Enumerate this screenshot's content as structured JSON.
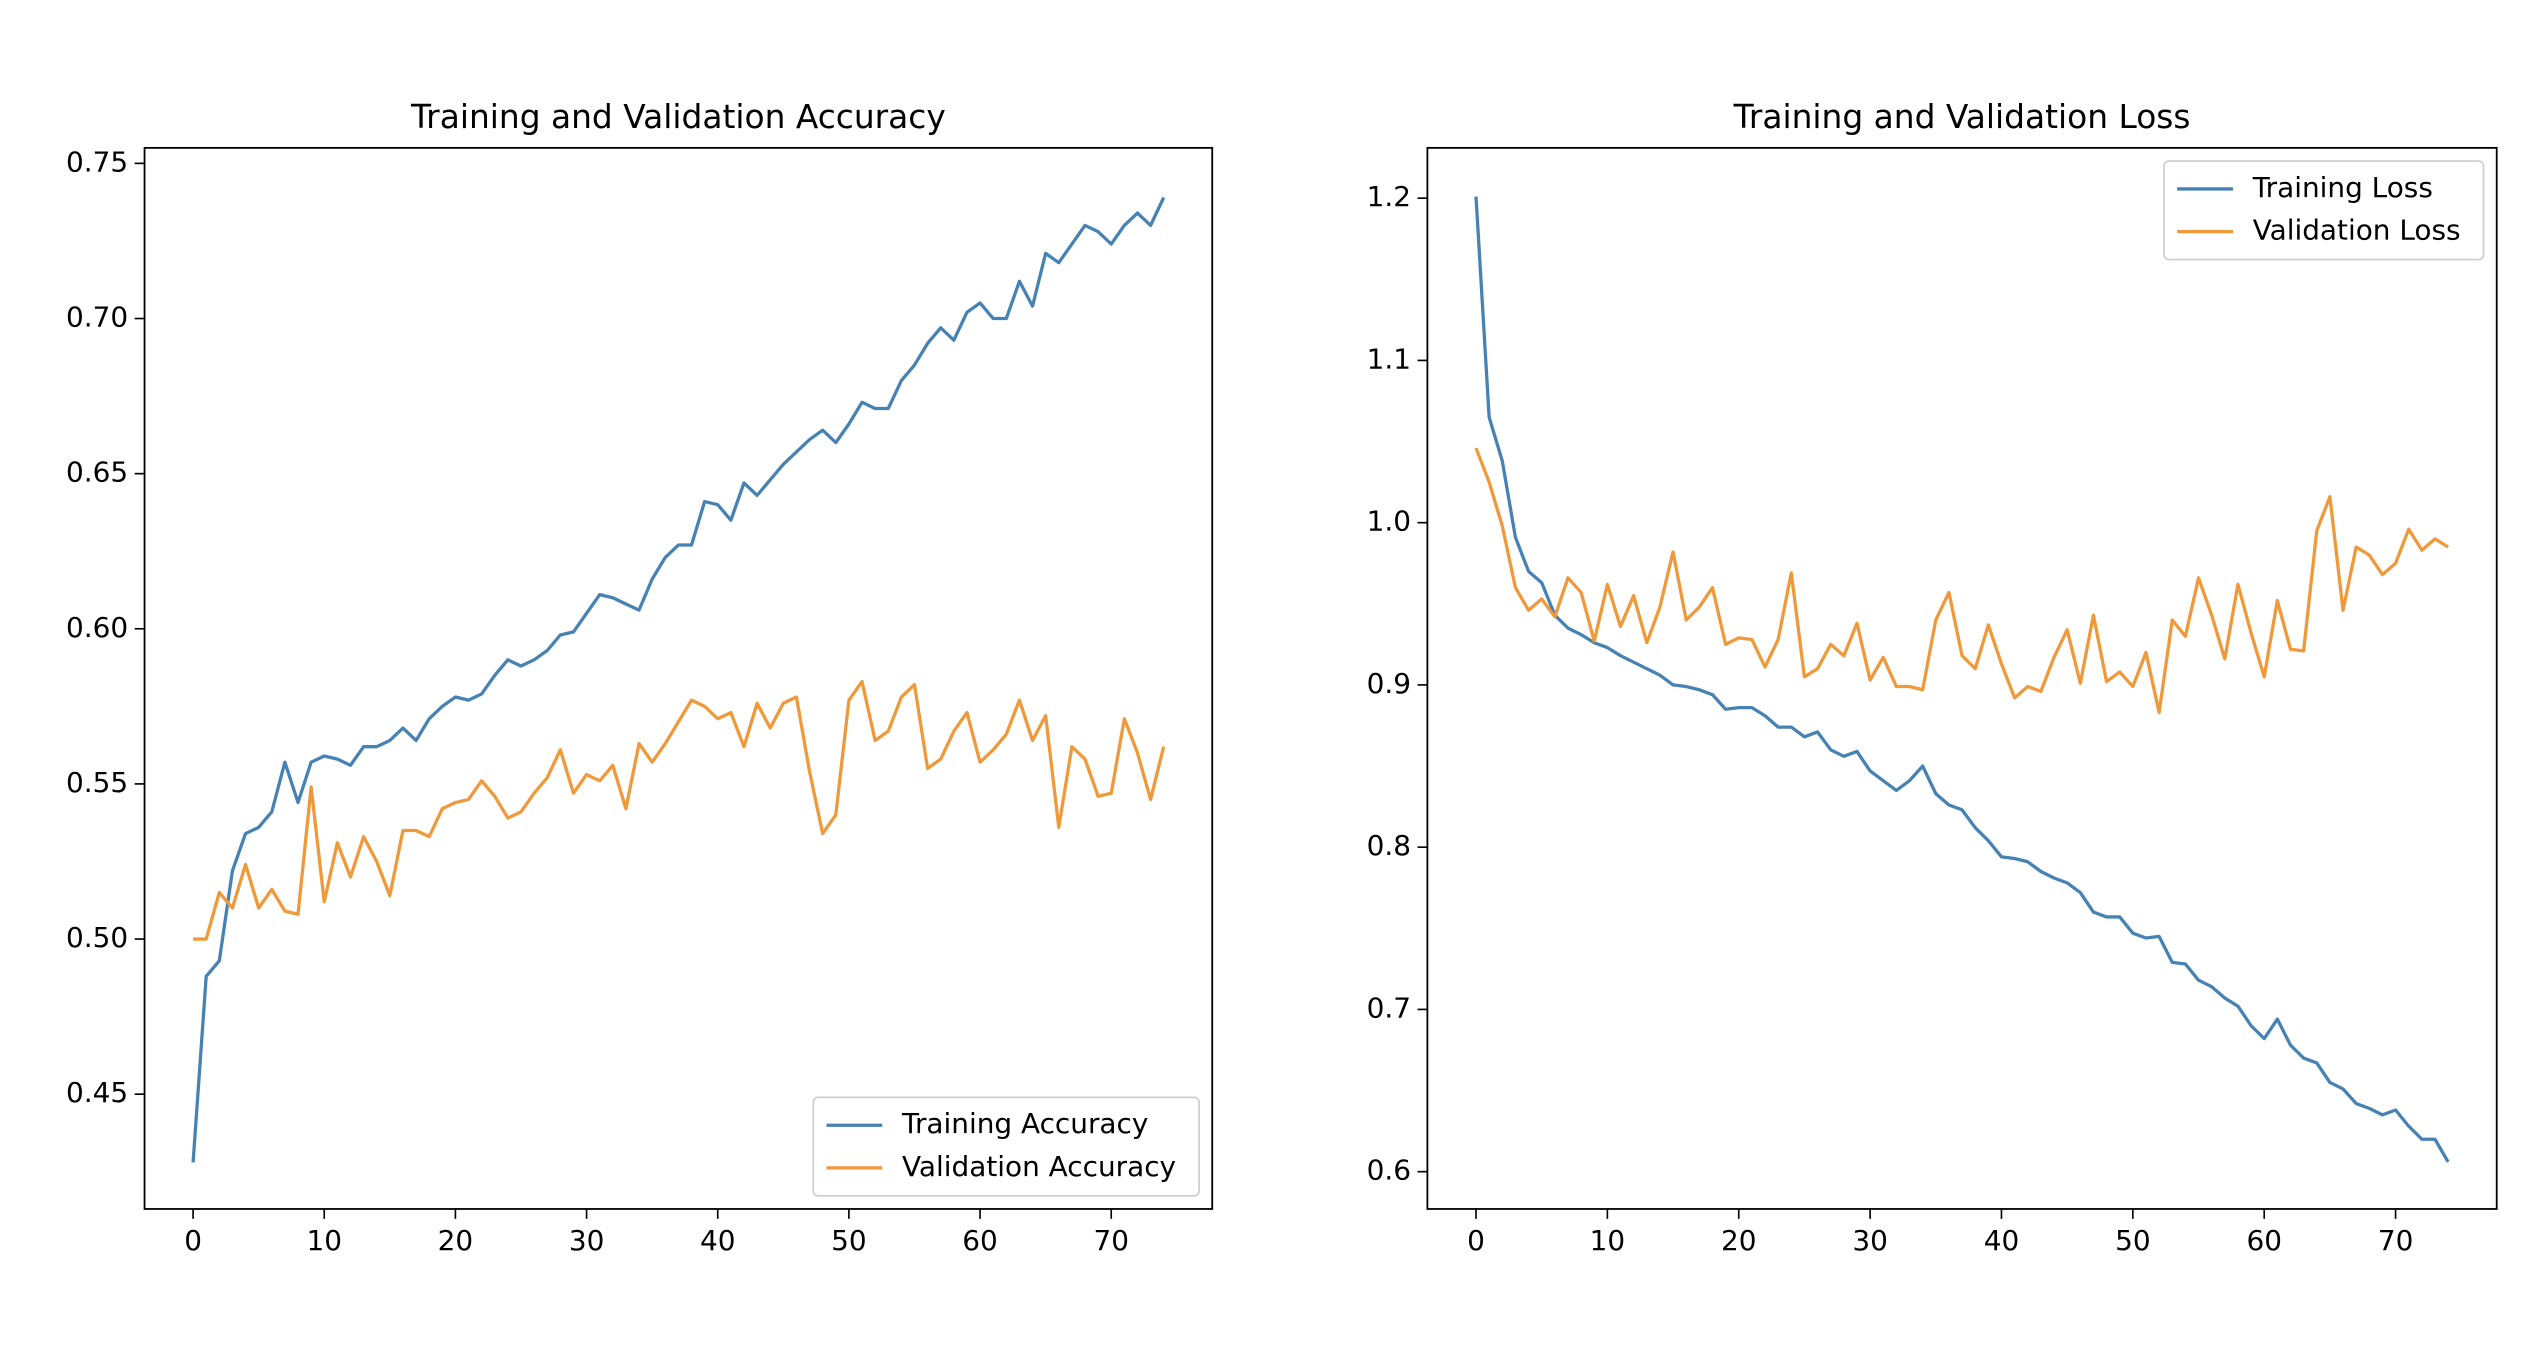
{
  "chart_data": [
    {
      "type": "line",
      "title": "Training and Validation Accuracy",
      "x": [
        0,
        1,
        2,
        3,
        4,
        5,
        6,
        7,
        8,
        9,
        10,
        11,
        12,
        13,
        14,
        15,
        16,
        17,
        18,
        19,
        20,
        21,
        22,
        23,
        24,
        25,
        26,
        27,
        28,
        29,
        30,
        31,
        32,
        33,
        34,
        35,
        36,
        37,
        38,
        39,
        40,
        41,
        42,
        43,
        44,
        45,
        46,
        47,
        48,
        49,
        50,
        51,
        52,
        53,
        54,
        55,
        56,
        57,
        58,
        59,
        60,
        61,
        62,
        63,
        64,
        65,
        66,
        67,
        68,
        69,
        70,
        71,
        72,
        73,
        74
      ],
      "series": [
        {
          "name": "Training Accuracy",
          "color": "#4682b4",
          "values": [
            0.428,
            0.488,
            0.493,
            0.522,
            0.534,
            0.536,
            0.541,
            0.557,
            0.544,
            0.557,
            0.559,
            0.558,
            0.556,
            0.562,
            0.562,
            0.564,
            0.568,
            0.564,
            0.571,
            0.575,
            0.578,
            0.577,
            0.579,
            0.585,
            0.59,
            0.588,
            0.59,
            0.593,
            0.598,
            0.599,
            0.605,
            0.611,
            0.61,
            0.608,
            0.606,
            0.616,
            0.623,
            0.627,
            0.627,
            0.641,
            0.64,
            0.635,
            0.647,
            0.643,
            0.648,
            0.653,
            0.657,
            0.661,
            0.664,
            0.66,
            0.666,
            0.673,
            0.671,
            0.671,
            0.68,
            0.685,
            0.692,
            0.697,
            0.693,
            0.702,
            0.705,
            0.7,
            0.7,
            0.712,
            0.704,
            0.721,
            0.718,
            0.724,
            0.73,
            0.728,
            0.724,
            0.73,
            0.734,
            0.73,
            0.739
          ]
        },
        {
          "name": "Validation Accuracy",
          "color": "#f0993a",
          "values": [
            0.5,
            0.5,
            0.515,
            0.51,
            0.524,
            0.51,
            0.516,
            0.509,
            0.508,
            0.549,
            0.512,
            0.531,
            0.52,
            0.533,
            0.525,
            0.514,
            0.535,
            0.535,
            0.533,
            0.542,
            0.544,
            0.545,
            0.551,
            0.546,
            0.539,
            0.541,
            0.547,
            0.552,
            0.561,
            0.547,
            0.553,
            0.551,
            0.556,
            0.542,
            0.563,
            0.557,
            0.563,
            0.57,
            0.577,
            0.575,
            0.571,
            0.573,
            0.562,
            0.576,
            0.568,
            0.576,
            0.578,
            0.554,
            0.534,
            0.54,
            0.577,
            0.583,
            0.564,
            0.567,
            0.578,
            0.582,
            0.555,
            0.558,
            0.567,
            0.573,
            0.557,
            0.561,
            0.566,
            0.577,
            0.564,
            0.572,
            0.536,
            0.562,
            0.558,
            0.546,
            0.547,
            0.571,
            0.56,
            0.545,
            0.562
          ]
        }
      ],
      "xlim": [
        -3.7,
        77.7
      ],
      "xticks": [
        0,
        10,
        20,
        30,
        40,
        50,
        60,
        70
      ],
      "ylim": [
        0.413,
        0.755
      ],
      "yticks": [
        0.45,
        {
          "value": 0.5,
          "label": "0.50"
        },
        0.55,
        {
          "value": 0.6,
          "label": "0.60"
        },
        0.65,
        {
          "value": 0.7,
          "label": "0.70"
        },
        0.75
      ],
      "grid": false,
      "legend": "lower-right"
    },
    {
      "type": "line",
      "title": "Training and Validation Loss",
      "x": [
        0,
        1,
        2,
        3,
        4,
        5,
        6,
        7,
        8,
        9,
        10,
        11,
        12,
        13,
        14,
        15,
        16,
        17,
        18,
        19,
        20,
        21,
        22,
        23,
        24,
        25,
        26,
        27,
        28,
        29,
        30,
        31,
        32,
        33,
        34,
        35,
        36,
        37,
        38,
        39,
        40,
        41,
        42,
        43,
        44,
        45,
        46,
        47,
        48,
        49,
        50,
        51,
        52,
        53,
        54,
        55,
        56,
        57,
        58,
        59,
        60,
        61,
        62,
        63,
        64,
        65,
        66,
        67,
        68,
        69,
        70,
        71,
        72,
        73,
        74
      ],
      "series": [
        {
          "name": "Training Loss",
          "color": "#4682b4",
          "values": [
            1.201,
            1.065,
            1.038,
            0.991,
            0.97,
            0.963,
            0.943,
            0.935,
            0.931,
            0.926,
            0.923,
            0.918,
            0.914,
            0.91,
            0.906,
            0.9,
            0.899,
            0.897,
            0.894,
            0.885,
            0.886,
            0.886,
            0.881,
            0.874,
            0.874,
            0.868,
            0.871,
            0.86,
            0.856,
            0.859,
            0.847,
            0.841,
            0.835,
            0.841,
            0.85,
            0.833,
            0.826,
            0.823,
            0.812,
            0.804,
            0.794,
            0.793,
            0.791,
            0.785,
            0.781,
            0.778,
            0.772,
            0.76,
            0.757,
            0.757,
            0.747,
            0.744,
            0.745,
            0.729,
            0.728,
            0.718,
            0.714,
            0.707,
            0.702,
            0.69,
            0.682,
            0.694,
            0.678,
            0.67,
            0.667,
            0.655,
            0.651,
            0.642,
            0.639,
            0.635,
            0.638,
            0.628,
            0.62,
            0.62,
            0.606
          ]
        },
        {
          "name": "Validation Loss",
          "color": "#f0993a",
          "values": [
            1.046,
            1.025,
            0.998,
            0.96,
            0.946,
            0.953,
            0.942,
            0.966,
            0.957,
            0.927,
            0.962,
            0.936,
            0.955,
            0.926,
            0.948,
            0.982,
            0.94,
            0.948,
            0.96,
            0.925,
            0.929,
            0.928,
            0.911,
            0.928,
            0.969,
            0.905,
            0.91,
            0.925,
            0.918,
            0.938,
            0.903,
            0.917,
            0.899,
            0.899,
            0.897,
            0.94,
            0.957,
            0.918,
            0.91,
            0.937,
            0.913,
            0.892,
            0.899,
            0.896,
            0.917,
            0.934,
            0.901,
            0.943,
            0.902,
            0.908,
            0.899,
            0.92,
            0.883,
            0.94,
            0.93,
            0.966,
            0.943,
            0.916,
            0.962,
            0.932,
            0.905,
            0.952,
            0.922,
            0.921,
            0.995,
            1.016,
            0.946,
            0.985,
            0.98,
            0.968,
            0.975,
            0.996,
            0.983,
            0.99,
            0.985
          ]
        }
      ],
      "xlim": [
        -3.7,
        77.7
      ],
      "xticks": [
        0,
        10,
        20,
        30,
        40,
        50,
        60,
        70
      ],
      "ylim": [
        0.577,
        1.231
      ],
      "yticks": [
        0.6,
        0.7,
        0.8,
        0.9,
        {
          "value": 1.0,
          "label": "1.0"
        },
        1.1,
        1.2
      ],
      "grid": false,
      "legend": "upper-right"
    }
  ]
}
